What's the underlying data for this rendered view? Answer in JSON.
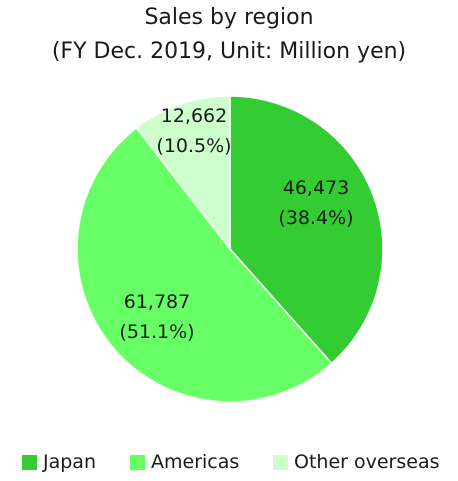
{
  "chart_data": {
    "type": "pie",
    "title": "Sales by region",
    "subtitle": "(FY Dec. 2019, Unit: Million yen)",
    "slices": [
      {
        "name": "Japan",
        "value": 46473,
        "label_value": "46,473",
        "label_pct": "(38.4%)",
        "percent": 38.4,
        "color": "#33cc33"
      },
      {
        "name": "Americas",
        "value": 61787,
        "label_value": "61,787",
        "label_pct": "(51.1%)",
        "percent": 51.1,
        "color": "#66ff66"
      },
      {
        "name": "Other overseas",
        "value": 12662,
        "label_value": "12,662",
        "label_pct": "(10.5%)",
        "percent": 10.5,
        "color": "#ccffcc"
      }
    ],
    "start_angle_deg": 0,
    "direction": "clockwise",
    "legend_position": "bottom"
  }
}
